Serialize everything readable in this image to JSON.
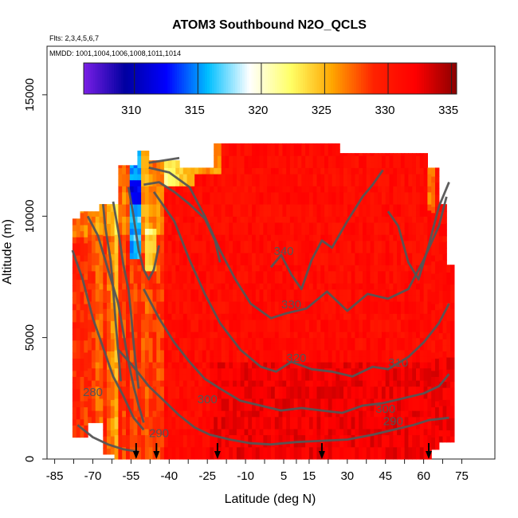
{
  "chart_data": {
    "type": "heatmap",
    "title": "ATOM3 Southbound N2O_QCLS",
    "subtitle_flights": "Flts: 2,3,4,5,6,7",
    "subtitle_dates": "MMDD: 1001,1004,1006,1008,1011,1014",
    "xlabel": "Latitude (deg N)",
    "ylabel": "Altitude (m)",
    "xlim": [
      -88,
      88
    ],
    "ylim": [
      0,
      17000
    ],
    "x_ticks": [
      -85,
      -70,
      -55,
      -40,
      -25,
      -10,
      5,
      15,
      30,
      45,
      60,
      75
    ],
    "y_ticks": [
      0,
      5000,
      10000,
      15000
    ],
    "colorbar": {
      "range": [
        306,
        335.4
      ],
      "ticks": [
        310,
        315,
        320,
        325,
        330,
        335
      ],
      "colors": [
        "#7a1fe6",
        "#0000a0",
        "#0000ff",
        "#00bfff",
        "#ffffff",
        "#ffff66",
        "#ffa500",
        "#ff2200",
        "#ff0000",
        "#8b0000"
      ]
    },
    "contour_labels": [
      {
        "text": "340",
        "lat": 5,
        "alt": 8400
      },
      {
        "text": "330",
        "lat": 8,
        "alt": 6200
      },
      {
        "text": "320",
        "lat": 10,
        "alt": 4000
      },
      {
        "text": "310",
        "lat": 50,
        "alt": 3800
      },
      {
        "text": "300",
        "lat": -25,
        "alt": 2300
      },
      {
        "text": "300",
        "lat": 45,
        "alt": 1900
      },
      {
        "text": "290",
        "lat": 48,
        "alt": 1400
      },
      {
        "text": "290",
        "lat": -44,
        "alt": 900
      },
      {
        "text": "280",
        "lat": -70,
        "alt": 2600
      }
    ],
    "arrows_lat": [
      -53,
      -45,
      -21,
      20,
      62
    ]
  }
}
